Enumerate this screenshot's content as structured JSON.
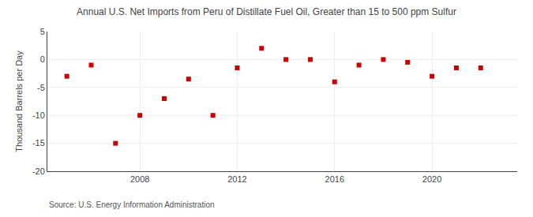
{
  "chart_data": {
    "type": "scatter",
    "title": "Annual U.S. Net Imports from Peru of Distillate Fuel Oil, Greater than 15 to 500 ppm Sulfur",
    "ylabel": "Thousand Barrels per Day",
    "annotations": [
      "Source: U.S. Energy Information Administration"
    ],
    "x": [
      2005,
      2006,
      2007,
      2008,
      2009,
      2010,
      2011,
      2012,
      2013,
      2014,
      2015,
      2016,
      2017,
      2018,
      2019,
      2020,
      2021,
      2022
    ],
    "values": [
      -3.0,
      -1.0,
      -15.0,
      -10.0,
      -7.0,
      -3.5,
      -10.0,
      -1.5,
      2.0,
      0.0,
      0.0,
      -4.0,
      -1.0,
      0.0,
      -0.5,
      -3.0,
      -1.5,
      -1.5
    ],
    "color": "#cc0000",
    "marker": "square",
    "xlim": [
      2004.2,
      2023.5
    ],
    "xticks": [
      2008,
      2012,
      2016,
      2020
    ],
    "ylim": [
      -20,
      5
    ],
    "yticks": [
      -20,
      -15,
      -10,
      -5,
      0,
      5
    ],
    "grid": true
  }
}
